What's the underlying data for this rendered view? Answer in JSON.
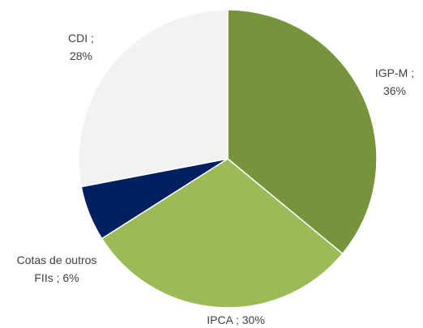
{
  "chart_data": {
    "type": "pie",
    "categories": [
      "IGP-M",
      "IPCA",
      "Cotas de outros FIIs",
      "CDI"
    ],
    "values": [
      36,
      30,
      6,
      28
    ],
    "value_labels": [
      "36%",
      "30%",
      "6%",
      "28%"
    ],
    "label_separator": " ; ",
    "colors": [
      "#77933c",
      "#9bbb59",
      "#002060",
      "#f2f2f2"
    ]
  }
}
